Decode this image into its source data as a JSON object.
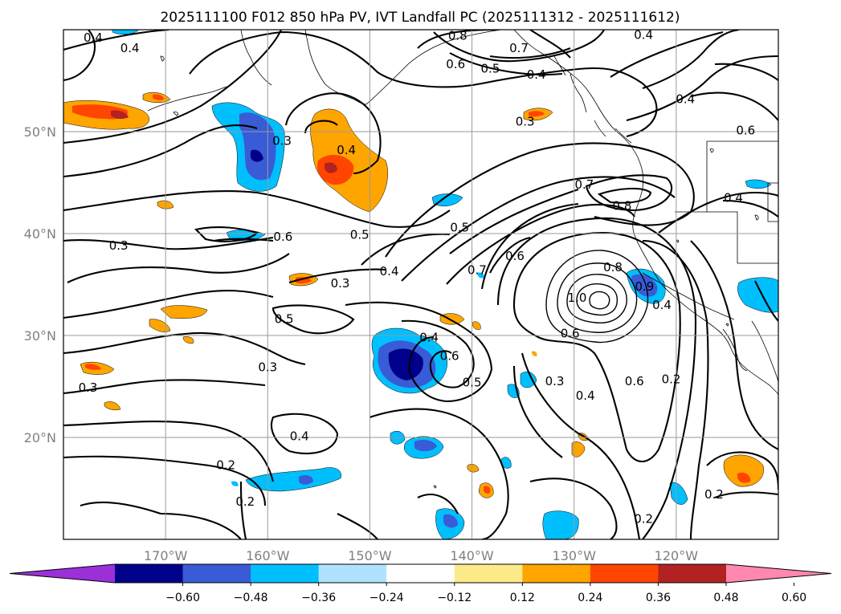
{
  "title": "2025111100 F012 850 hPa PV, IVT Landfall PC (2025111312 - 2025111612)",
  "map": {
    "lon_range": [
      -180,
      -110
    ],
    "lat_range": [
      10,
      60
    ],
    "lat_ticks": [
      {
        "value": 50,
        "label": "50°N"
      },
      {
        "value": 40,
        "label": "40°N"
      },
      {
        "value": 30,
        "label": "30°N"
      },
      {
        "value": 20,
        "label": "20°N"
      }
    ],
    "lon_ticks": [
      {
        "value": -170,
        "label": "170°W"
      },
      {
        "value": -160,
        "label": "160°W"
      },
      {
        "value": -150,
        "label": "150°W"
      },
      {
        "value": -140,
        "label": "140°W"
      },
      {
        "value": -130,
        "label": "130°W"
      },
      {
        "value": -120,
        "label": "120°W"
      }
    ],
    "grid": true,
    "contour_labels": [
      {
        "text": "0.4",
        "lon": -177.1,
        "lat": 59.2
      },
      {
        "text": "0.4",
        "lon": -173.5,
        "lat": 58.2
      },
      {
        "text": "0.8",
        "lon": -141.4,
        "lat": 59.4
      },
      {
        "text": "0.7",
        "lon": -135.4,
        "lat": 58.2
      },
      {
        "text": "0.6",
        "lon": -141.6,
        "lat": 56.6
      },
      {
        "text": "0.5",
        "lon": -138.2,
        "lat": 56.2
      },
      {
        "text": "0.4",
        "lon": -133.7,
        "lat": 55.6
      },
      {
        "text": "0.4",
        "lon": -123.2,
        "lat": 59.5
      },
      {
        "text": "0.4",
        "lon": -119.1,
        "lat": 53.2
      },
      {
        "text": "0.3",
        "lon": -134.8,
        "lat": 51.0
      },
      {
        "text": "0.6",
        "lon": -113.2,
        "lat": 50.1
      },
      {
        "text": "0.3",
        "lon": -158.6,
        "lat": 49.1
      },
      {
        "text": "0.4",
        "lon": -152.3,
        "lat": 48.2
      },
      {
        "text": "0.7",
        "lon": -129.0,
        "lat": 44.8
      },
      {
        "text": "0.8",
        "lon": -125.3,
        "lat": 42.7
      },
      {
        "text": "0.4",
        "lon": -114.4,
        "lat": 43.5
      },
      {
        "text": "0.5",
        "lon": -141.2,
        "lat": 40.6
      },
      {
        "text": "0.6",
        "lon": -158.5,
        "lat": 39.7
      },
      {
        "text": "0.5",
        "lon": -151.0,
        "lat": 39.9
      },
      {
        "text": "0.3",
        "lon": -174.6,
        "lat": 38.8
      },
      {
        "text": "0.6",
        "lon": -135.8,
        "lat": 37.8
      },
      {
        "text": "0.7",
        "lon": -139.5,
        "lat": 36.4
      },
      {
        "text": "0.4",
        "lon": -148.1,
        "lat": 36.3
      },
      {
        "text": "0.3",
        "lon": -152.9,
        "lat": 35.1
      },
      {
        "text": "0.8",
        "lon": -126.2,
        "lat": 36.7
      },
      {
        "text": "0.9",
        "lon": -123.1,
        "lat": 34.8
      },
      {
        "text": "1.0",
        "lon": -129.7,
        "lat": 33.7
      },
      {
        "text": "0.4",
        "lon": -121.4,
        "lat": 33.0
      },
      {
        "text": "0.5",
        "lon": -158.4,
        "lat": 31.6
      },
      {
        "text": "0.4",
        "lon": -144.2,
        "lat": 29.8
      },
      {
        "text": "0.6",
        "lon": -130.4,
        "lat": 30.2
      },
      {
        "text": "0.6",
        "lon": -142.2,
        "lat": 28.0
      },
      {
        "text": "0.3",
        "lon": -160.0,
        "lat": 26.9
      },
      {
        "text": "0.6",
        "lon": -124.1,
        "lat": 25.5
      },
      {
        "text": "0.2",
        "lon": -120.5,
        "lat": 25.7
      },
      {
        "text": "0.5",
        "lon": -140.0,
        "lat": 25.4
      },
      {
        "text": "0.3",
        "lon": -131.9,
        "lat": 25.5
      },
      {
        "text": "0.4",
        "lon": -128.9,
        "lat": 24.1
      },
      {
        "text": "0.3",
        "lon": -177.6,
        "lat": 24.9
      },
      {
        "text": "0.4",
        "lon": -156.9,
        "lat": 20.1
      },
      {
        "text": "0.2",
        "lon": -164.1,
        "lat": 17.3
      },
      {
        "text": "0.2",
        "lon": -162.2,
        "lat": 13.7
      },
      {
        "text": "0.2",
        "lon": -123.2,
        "lat": 12.0
      },
      {
        "text": "0.2",
        "lon": -116.3,
        "lat": 14.4
      }
    ]
  },
  "colorbar": {
    "colors": [
      "#9b30d8",
      "#00008b",
      "#3a5bd6",
      "#00bfff",
      "#b0e2ff",
      "#ffffff",
      "#fdeb8a",
      "#ffa500",
      "#ff4500",
      "#b22222",
      "#ff88b0"
    ],
    "ticks": [
      "−0.60",
      "−0.48",
      "−0.36",
      "−0.24",
      "−0.12",
      "0.12",
      "0.24",
      "0.36",
      "0.48",
      "0.60"
    ],
    "extend": "both"
  }
}
